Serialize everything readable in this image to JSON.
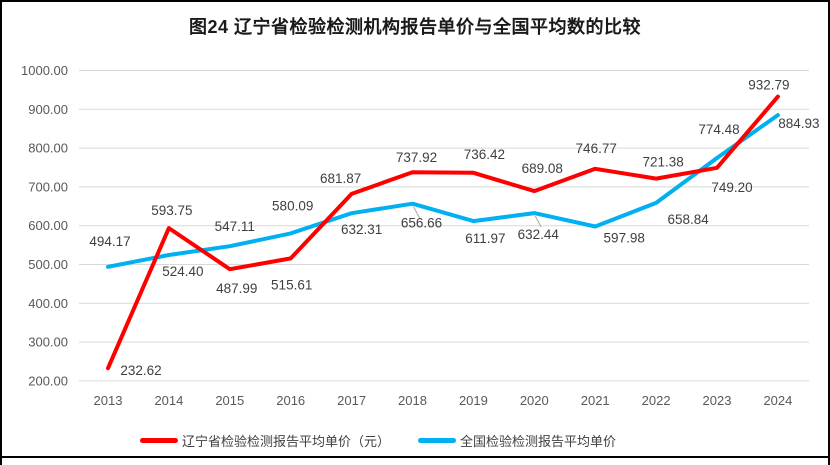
{
  "title": "图24 辽宁省检验检测机构报告单价与全国平均数的比较",
  "colors": {
    "liaoning_line": "#ff0000",
    "national_line": "#00b0f0",
    "gridline": "#d9d9d9",
    "axis_text": "#595959",
    "data_label": "#3f3f3f",
    "leader_line": "#a6a6a6",
    "frame": "#000000"
  },
  "chart_data": {
    "type": "line",
    "title": "图24 辽宁省检验检测机构报告单价与全国平均数的比较",
    "categories": [
      "2013",
      "2014",
      "2015",
      "2016",
      "2017",
      "2018",
      "2019",
      "2020",
      "2021",
      "2022",
      "2023",
      "2024"
    ],
    "series": [
      {
        "name": "辽宁省检验检测报告平均单价（元）",
        "color": "#ff0000",
        "values": [
          232.62,
          593.75,
          487.99,
          515.61,
          681.87,
          737.92,
          736.42,
          689.08,
          746.77,
          721.38,
          749.2,
          932.79
        ],
        "label_offsets": [
          [
            33,
            7
          ],
          [
            3,
            -13
          ],
          [
            7,
            24
          ],
          [
            1,
            31
          ],
          [
            -11,
            -11
          ],
          [
            4,
            -10
          ],
          [
            11,
            -14
          ],
          [
            8,
            -18
          ],
          [
            1,
            -16
          ],
          [
            7,
            -12
          ],
          [
            15,
            24
          ],
          [
            -9,
            -7
          ]
        ],
        "leader_indices": []
      },
      {
        "name": "全国检验检测报告平均单价",
        "color": "#00b0f0",
        "values": [
          494.17,
          524.4,
          547.11,
          580.09,
          632.31,
          656.66,
          611.97,
          632.44,
          597.98,
          658.84,
          774.48,
          884.93
        ],
        "label_offsets": [
          [
            2,
            -21
          ],
          [
            14,
            21
          ],
          [
            5,
            -15
          ],
          [
            2,
            -23
          ],
          [
            10,
            21
          ],
          [
            9,
            24
          ],
          [
            12,
            22
          ],
          [
            4,
            26
          ],
          [
            29,
            16
          ],
          [
            32,
            21
          ],
          [
            2,
            -24
          ],
          [
            21,
            13
          ]
        ],
        "leader_indices": [
          5,
          7
        ]
      }
    ],
    "ylim": [
      200,
      1000
    ],
    "ytick_step": 100,
    "ytick_labels": [
      "200.00",
      "300.00",
      "400.00",
      "500.00",
      "600.00",
      "700.00",
      "800.00",
      "900.00",
      "1000.00"
    ],
    "value_label_decimals": 2,
    "grid": true,
    "legend_position": "bottom",
    "xlabel": "",
    "ylabel": ""
  }
}
